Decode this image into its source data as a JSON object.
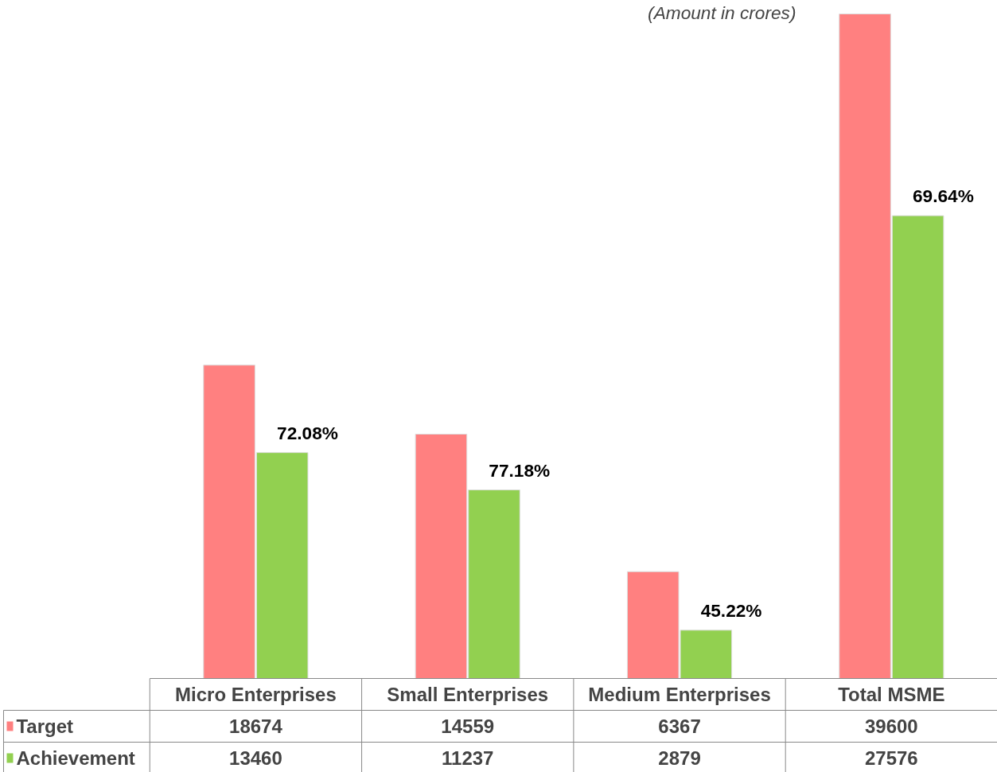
{
  "chart_data": {
    "type": "bar",
    "categories": [
      "Micro Enterprises",
      "Small Enterprises",
      "Medium Enterprises",
      "Total MSME"
    ],
    "series": [
      {
        "name": "Target",
        "color": "#ff8080",
        "values": [
          18674,
          14559,
          6367,
          39600
        ]
      },
      {
        "name": "Achievement",
        "color": "#92d050",
        "values": [
          13460,
          11237,
          2879,
          27576
        ]
      }
    ],
    "data_labels": true,
    "legend": "bottom left",
    "annotations": [
      "(Amount in crores)",
      {
        "text": "72.08%",
        "x": "Micro Enterprises",
        "y": 13460
      },
      {
        "text": "77.18%",
        "x": "Small Enterprises",
        "y": 11237
      },
      {
        "text": "45.22%",
        "x": "Medium Enterprises",
        "y": 2879
      },
      {
        "text": "69.64%",
        "x": "Total MSME",
        "y": 27576
      }
    ]
  }
}
